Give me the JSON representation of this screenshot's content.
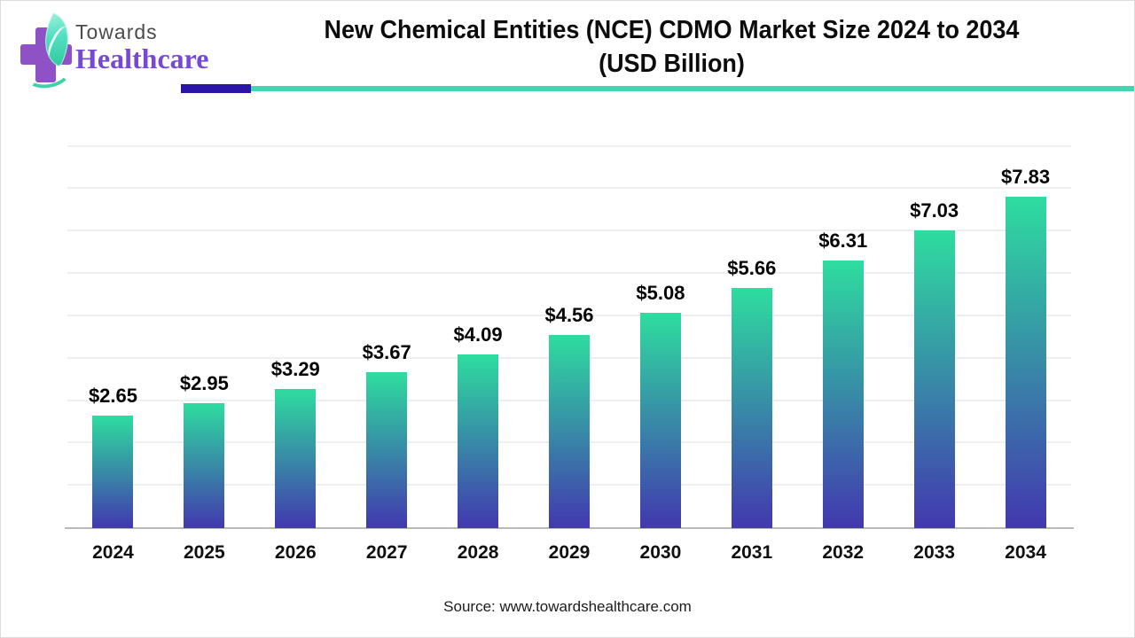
{
  "brand": {
    "name_top": "Towards",
    "name_bottom": "Healthcare",
    "logo_colors": {
      "cross": "#8E51C6",
      "leaf_light": "#9BEFDC",
      "leaf_dark": "#2FCA9D"
    }
  },
  "header": {
    "title_line1": "New Chemical Entities (NCE) CDMO Market Size 2024 to 2034",
    "title_line2": "(USD Billion)",
    "divider_purple_color": "#2B15A7",
    "divider_teal_color": "#43D6B2"
  },
  "chart_data": {
    "type": "bar",
    "title": "New Chemical Entities (NCE) CDMO Market Size 2024 to 2034 (USD Billion)",
    "categories": [
      "2024",
      "2025",
      "2026",
      "2027",
      "2028",
      "2029",
      "2030",
      "2031",
      "2032",
      "2033",
      "2034"
    ],
    "values": [
      2.65,
      2.95,
      3.29,
      3.67,
      4.09,
      4.56,
      5.08,
      5.66,
      6.31,
      7.03,
      7.83
    ],
    "value_labels": [
      "$2.65",
      "$2.95",
      "$3.29",
      "$3.67",
      "$4.09",
      "$4.56",
      "$5.08",
      "$5.66",
      "$6.31",
      "$7.03",
      "$7.83"
    ],
    "unit": "USD Billion",
    "xlabel": "",
    "ylabel": "",
    "ylim": [
      0,
      9.2
    ],
    "gridline_step": 1,
    "grid": true,
    "legend": "none",
    "bar_gradient": {
      "top": "#2EDD9F",
      "bottom": "#4238AF"
    },
    "gridline_color": "#efefef",
    "axis_line_color": "#b9b9b9"
  },
  "footer": {
    "source": "Source: www.towardshealthcare.com"
  }
}
